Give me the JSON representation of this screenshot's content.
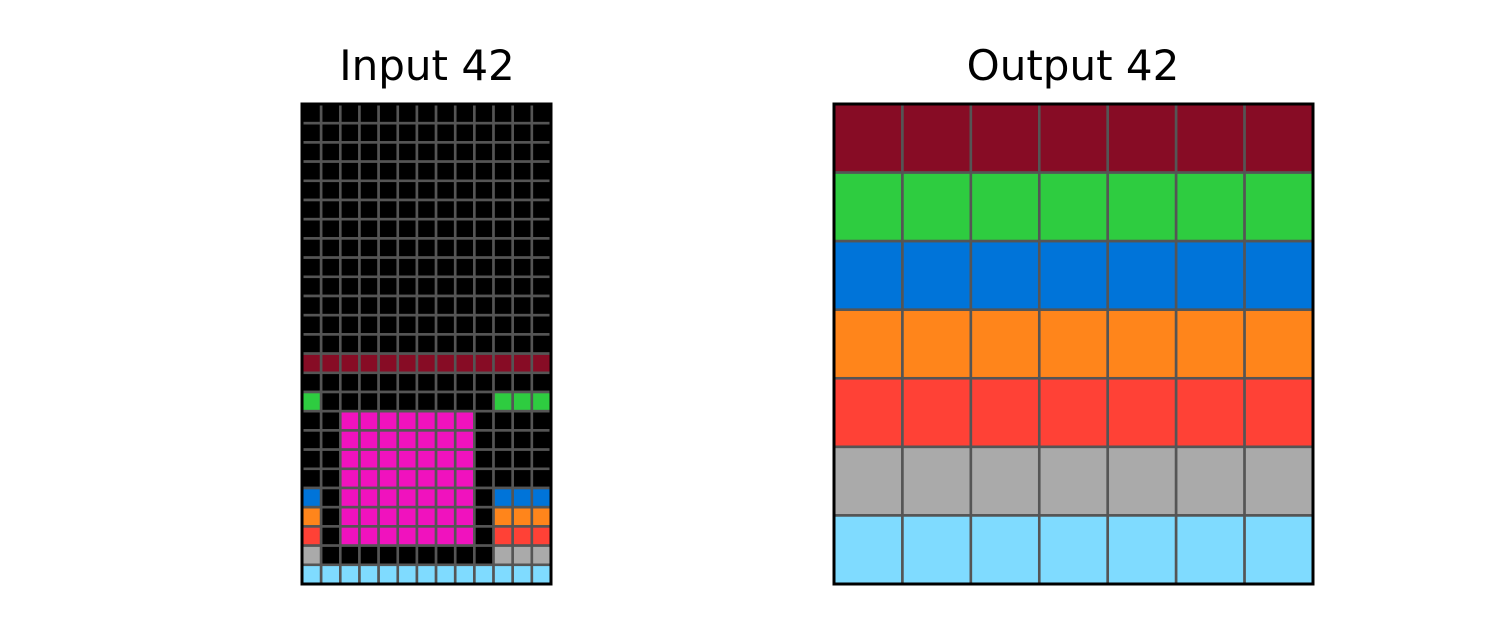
{
  "palette": {
    "0": "#000000",
    "1": "#0074D9",
    "2": "#FF4136",
    "3": "#2ECC40",
    "5": "#AAAAAA",
    "6": "#F012BE",
    "7": "#FF851B",
    "8": "#7FDBFF",
    "9": "#870C25"
  },
  "grid_line_color": "#555555",
  "border_color": "#000000",
  "input": {
    "title": "Input 42",
    "rows": [
      [
        0,
        0,
        0,
        0,
        0,
        0,
        0,
        0,
        0,
        0,
        0,
        0,
        0
      ],
      [
        0,
        0,
        0,
        0,
        0,
        0,
        0,
        0,
        0,
        0,
        0,
        0,
        0
      ],
      [
        0,
        0,
        0,
        0,
        0,
        0,
        0,
        0,
        0,
        0,
        0,
        0,
        0
      ],
      [
        0,
        0,
        0,
        0,
        0,
        0,
        0,
        0,
        0,
        0,
        0,
        0,
        0
      ],
      [
        0,
        0,
        0,
        0,
        0,
        0,
        0,
        0,
        0,
        0,
        0,
        0,
        0
      ],
      [
        0,
        0,
        0,
        0,
        0,
        0,
        0,
        0,
        0,
        0,
        0,
        0,
        0
      ],
      [
        0,
        0,
        0,
        0,
        0,
        0,
        0,
        0,
        0,
        0,
        0,
        0,
        0
      ],
      [
        0,
        0,
        0,
        0,
        0,
        0,
        0,
        0,
        0,
        0,
        0,
        0,
        0
      ],
      [
        0,
        0,
        0,
        0,
        0,
        0,
        0,
        0,
        0,
        0,
        0,
        0,
        0
      ],
      [
        0,
        0,
        0,
        0,
        0,
        0,
        0,
        0,
        0,
        0,
        0,
        0,
        0
      ],
      [
        0,
        0,
        0,
        0,
        0,
        0,
        0,
        0,
        0,
        0,
        0,
        0,
        0
      ],
      [
        0,
        0,
        0,
        0,
        0,
        0,
        0,
        0,
        0,
        0,
        0,
        0,
        0
      ],
      [
        0,
        0,
        0,
        0,
        0,
        0,
        0,
        0,
        0,
        0,
        0,
        0,
        0
      ],
      [
        9,
        9,
        9,
        9,
        9,
        9,
        9,
        9,
        9,
        9,
        9,
        9,
        9
      ],
      [
        0,
        0,
        0,
        0,
        0,
        0,
        0,
        0,
        0,
        0,
        0,
        0,
        0
      ],
      [
        3,
        0,
        0,
        0,
        0,
        0,
        0,
        0,
        0,
        0,
        3,
        3,
        3
      ],
      [
        0,
        0,
        6,
        6,
        6,
        6,
        6,
        6,
        6,
        0,
        0,
        0,
        0
      ],
      [
        0,
        0,
        6,
        6,
        6,
        6,
        6,
        6,
        6,
        0,
        0,
        0,
        0
      ],
      [
        0,
        0,
        6,
        6,
        6,
        6,
        6,
        6,
        6,
        0,
        0,
        0,
        0
      ],
      [
        0,
        0,
        6,
        6,
        6,
        6,
        6,
        6,
        6,
        0,
        0,
        0,
        0
      ],
      [
        1,
        0,
        6,
        6,
        6,
        6,
        6,
        6,
        6,
        0,
        1,
        1,
        1
      ],
      [
        7,
        0,
        6,
        6,
        6,
        6,
        6,
        6,
        6,
        0,
        7,
        7,
        7
      ],
      [
        2,
        0,
        6,
        6,
        6,
        6,
        6,
        6,
        6,
        0,
        2,
        2,
        2
      ],
      [
        5,
        0,
        0,
        0,
        0,
        0,
        0,
        0,
        0,
        0,
        5,
        5,
        5
      ],
      [
        8,
        8,
        8,
        8,
        8,
        8,
        8,
        8,
        8,
        8,
        8,
        8,
        8
      ]
    ]
  },
  "output": {
    "title": "Output 42",
    "rows": [
      [
        9,
        9,
        9,
        9,
        9,
        9,
        9
      ],
      [
        3,
        3,
        3,
        3,
        3,
        3,
        3
      ],
      [
        1,
        1,
        1,
        1,
        1,
        1,
        1
      ],
      [
        7,
        7,
        7,
        7,
        7,
        7,
        7
      ],
      [
        2,
        2,
        2,
        2,
        2,
        2,
        2
      ],
      [
        5,
        5,
        5,
        5,
        5,
        5,
        5
      ],
      [
        8,
        8,
        8,
        8,
        8,
        8,
        8
      ]
    ]
  }
}
